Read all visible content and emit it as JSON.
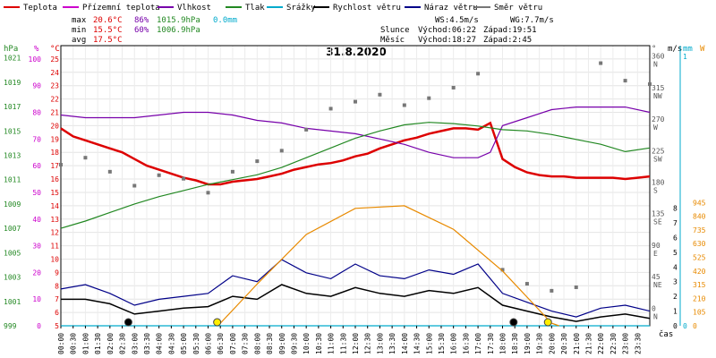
{
  "legend": [
    {
      "label": "Teplota",
      "color": "#dd0000"
    },
    {
      "label": "Přízemní teplota",
      "color": "#cc00cc"
    },
    {
      "label": "Vlhkost",
      "color": "#7700aa"
    },
    {
      "label": "Tlak",
      "color": "#228822"
    },
    {
      "label": "Srážky",
      "color": "#00aacc"
    },
    {
      "label": "Rychlost větru",
      "color": "#000000"
    },
    {
      "label": "Náraz větru",
      "color": "#000088"
    },
    {
      "label": "Směr větru",
      "color": "#777777"
    }
  ],
  "stats": {
    "max_label": "max",
    "max_temp": "20.6°C",
    "max_hum": "86%",
    "max_press": "1015.9hPa",
    "max_rain": "0.0mm",
    "min_label": "min",
    "min_temp": "15.5°C",
    "min_hum": "60%",
    "min_press": "1006.9hPa",
    "avg_label": "avg",
    "avg_temp": "17.5°C"
  },
  "wind_info": {
    "ws": "WS:4.5m/s",
    "wg": "WG:7.7m/s"
  },
  "sun_info": {
    "label": "Slunce",
    "rise": "Východ:06:22",
    "set": "Západ:19:51"
  },
  "moon_info": {
    "label": "Měsíc",
    "rise": "Východ:18:27",
    "set": "Západ:2:45"
  },
  "title": "31.8.2020",
  "axis_units": {
    "hpa": "hPa",
    "pct": "%",
    "degc": "°C",
    "deg": "°",
    "ms": "m/s",
    "mm": "mm",
    "wm2": "W",
    "time": "čas"
  },
  "colors": {
    "temp": "#dd0000",
    "humidity": "#7700aa",
    "pressure": "#228822",
    "rain": "#00aacc",
    "wind": "#000000",
    "gust": "#000088",
    "dir": "#777777",
    "sun": "#e88a00",
    "hum_axis": "#cc00cc",
    "temp_axis": "#dd0000",
    "hpa_axis": "#228822"
  },
  "chart_data": {
    "type": "line",
    "title": "31.8.2020",
    "x_ticks": [
      "00:00",
      "00:30",
      "01:00",
      "01:30",
      "02:00",
      "02:30",
      "03:00",
      "03:30",
      "04:00",
      "04:30",
      "05:00",
      "05:30",
      "06:00",
      "06:30",
      "07:00",
      "07:30",
      "08:00",
      "08:30",
      "09:00",
      "09:30",
      "10:00",
      "10:30",
      "11:00",
      "11:30",
      "12:00",
      "12:30",
      "13:00",
      "13:30",
      "14:00",
      "14:30",
      "15:00",
      "15:30",
      "16:00",
      "16:30",
      "17:00",
      "17:30",
      "18:00",
      "18:30",
      "19:00",
      "19:30",
      "20:00",
      "20:30",
      "21:00",
      "21:30",
      "22:00",
      "22:30",
      "23:00",
      "23:30"
    ],
    "axes": {
      "pressure_hpa": {
        "ticks": [
          999,
          1001,
          1003,
          1005,
          1007,
          1009,
          1011,
          1013,
          1015,
          1017,
          1019,
          1021
        ]
      },
      "humidity_pct": {
        "ticks": [
          0,
          10,
          20,
          30,
          40,
          50,
          60,
          70,
          80,
          90,
          100
        ]
      },
      "temperature_c": {
        "ticks": [
          5,
          6,
          7,
          8,
          9,
          10,
          11,
          12,
          13,
          14,
          15,
          16,
          17,
          18,
          19,
          20,
          21,
          22,
          23,
          24,
          25
        ]
      },
      "wind_dir_deg": {
        "ticks": [
          [
            "0",
            "N"
          ],
          [
            "45",
            "NE"
          ],
          [
            "90",
            "E"
          ],
          [
            "135",
            "SE"
          ],
          [
            "180",
            "S"
          ],
          [
            "225",
            "SW"
          ],
          [
            "270",
            "W"
          ],
          [
            "315",
            "NW"
          ],
          [
            "360",
            "N"
          ]
        ]
      },
      "wind_ms": {
        "ticks": [
          0,
          1,
          2,
          3,
          4,
          5,
          6,
          7,
          8
        ]
      },
      "rain_mm": {
        "ticks": [
          0,
          1
        ]
      },
      "solar_wm2": {
        "ticks": [
          0,
          105,
          210,
          315,
          420,
          525,
          630,
          735,
          840,
          945
        ]
      }
    },
    "series": [
      {
        "name": "Teplota",
        "axis": "temperature_c",
        "points": [
          [
            0,
            19.8
          ],
          [
            0.5,
            19.2
          ],
          [
            1,
            18.9
          ],
          [
            1.5,
            18.6
          ],
          [
            2,
            18.3
          ],
          [
            2.5,
            18.0
          ],
          [
            3,
            17.5
          ],
          [
            3.5,
            17.0
          ],
          [
            4,
            16.7
          ],
          [
            4.5,
            16.4
          ],
          [
            5,
            16.1
          ],
          [
            5.5,
            15.9
          ],
          [
            6,
            15.6
          ],
          [
            6.5,
            15.6
          ],
          [
            7,
            15.8
          ],
          [
            7.5,
            15.9
          ],
          [
            8,
            16.0
          ],
          [
            8.5,
            16.2
          ],
          [
            9,
            16.4
          ],
          [
            9.5,
            16.7
          ],
          [
            10,
            16.9
          ],
          [
            10.5,
            17.1
          ],
          [
            11,
            17.2
          ],
          [
            11.5,
            17.4
          ],
          [
            12,
            17.7
          ],
          [
            12.5,
            17.9
          ],
          [
            13,
            18.3
          ],
          [
            13.5,
            18.6
          ],
          [
            14,
            18.9
          ],
          [
            14.5,
            19.1
          ],
          [
            15,
            19.4
          ],
          [
            15.5,
            19.6
          ],
          [
            16,
            19.8
          ],
          [
            16.5,
            19.8
          ],
          [
            17,
            19.7
          ],
          [
            17.5,
            20.2
          ],
          [
            18,
            17.5
          ],
          [
            18.5,
            16.9
          ],
          [
            19,
            16.5
          ],
          [
            19.5,
            16.3
          ],
          [
            20,
            16.2
          ],
          [
            20.5,
            16.2
          ],
          [
            21,
            16.1
          ],
          [
            21.5,
            16.1
          ],
          [
            22,
            16.1
          ],
          [
            22.5,
            16.1
          ],
          [
            23,
            16.0
          ],
          [
            23.5,
            16.1
          ],
          [
            24,
            16.2
          ]
        ]
      },
      {
        "name": "Vlhkost",
        "axis": "humidity_pct",
        "points": [
          [
            0,
            79
          ],
          [
            1,
            78
          ],
          [
            2,
            78
          ],
          [
            3,
            78
          ],
          [
            4,
            79
          ],
          [
            5,
            80
          ],
          [
            6,
            80
          ],
          [
            7,
            79
          ],
          [
            8,
            77
          ],
          [
            9,
            76
          ],
          [
            10,
            74
          ],
          [
            11,
            73
          ],
          [
            12,
            72
          ],
          [
            13,
            70
          ],
          [
            14,
            68
          ],
          [
            15,
            65
          ],
          [
            16,
            63
          ],
          [
            17,
            63
          ],
          [
            17.5,
            65
          ],
          [
            18,
            75
          ],
          [
            19,
            78
          ],
          [
            20,
            81
          ],
          [
            21,
            82
          ],
          [
            22,
            82
          ],
          [
            23,
            82
          ],
          [
            24,
            80
          ]
        ]
      },
      {
        "name": "Tlak",
        "axis": "pressure_hpa",
        "points": [
          [
            0,
            1007.0
          ],
          [
            1,
            1007.6
          ],
          [
            2,
            1008.3
          ],
          [
            3,
            1009.0
          ],
          [
            4,
            1009.6
          ],
          [
            5,
            1010.1
          ],
          [
            6,
            1010.6
          ],
          [
            7,
            1011.0
          ],
          [
            8,
            1011.4
          ],
          [
            9,
            1012.0
          ],
          [
            10,
            1012.8
          ],
          [
            11,
            1013.6
          ],
          [
            12,
            1014.4
          ],
          [
            13,
            1015.0
          ],
          [
            14,
            1015.5
          ],
          [
            15,
            1015.7
          ],
          [
            16,
            1015.6
          ],
          [
            17,
            1015.4
          ],
          [
            18,
            1015.1
          ],
          [
            19,
            1015.0
          ],
          [
            20,
            1014.7
          ],
          [
            21,
            1014.3
          ],
          [
            22,
            1013.9
          ],
          [
            23,
            1013.3
          ],
          [
            24,
            1013.6
          ]
        ]
      },
      {
        "name": "Rychlost větru",
        "axis": "wind_ms",
        "points": [
          [
            0,
            1.8
          ],
          [
            1,
            1.8
          ],
          [
            2,
            1.5
          ],
          [
            3,
            0.8
          ],
          [
            4,
            1.0
          ],
          [
            5,
            1.2
          ],
          [
            6,
            1.3
          ],
          [
            7,
            2.0
          ],
          [
            8,
            1.8
          ],
          [
            9,
            2.8
          ],
          [
            10,
            2.2
          ],
          [
            11,
            2.0
          ],
          [
            12,
            2.6
          ],
          [
            13,
            2.2
          ],
          [
            14,
            2.0
          ],
          [
            15,
            2.4
          ],
          [
            16,
            2.2
          ],
          [
            17,
            2.6
          ],
          [
            18,
            1.4
          ],
          [
            19,
            1.0
          ],
          [
            20,
            0.6
          ],
          [
            21,
            0.3
          ],
          [
            22,
            0.6
          ],
          [
            23,
            0.8
          ],
          [
            24,
            0.5
          ]
        ]
      },
      {
        "name": "Náraz větru",
        "axis": "wind_ms",
        "points": [
          [
            0,
            2.5
          ],
          [
            1,
            2.8
          ],
          [
            2,
            2.2
          ],
          [
            3,
            1.4
          ],
          [
            4,
            1.8
          ],
          [
            5,
            2.0
          ],
          [
            6,
            2.2
          ],
          [
            7,
            3.4
          ],
          [
            8,
            3.0
          ],
          [
            9,
            4.5
          ],
          [
            10,
            3.6
          ],
          [
            11,
            3.2
          ],
          [
            12,
            4.2
          ],
          [
            13,
            3.4
          ],
          [
            14,
            3.2
          ],
          [
            15,
            3.8
          ],
          [
            16,
            3.5
          ],
          [
            17,
            4.2
          ],
          [
            18,
            2.2
          ],
          [
            19,
            1.6
          ],
          [
            20,
            1.0
          ],
          [
            21,
            0.6
          ],
          [
            22,
            1.2
          ],
          [
            23,
            1.4
          ],
          [
            24,
            1.0
          ]
        ]
      },
      {
        "name": "Směr větru",
        "axis": "wind_dir_deg",
        "type": "scatter",
        "points": [
          [
            0,
            210
          ],
          [
            1,
            220
          ],
          [
            2,
            200
          ],
          [
            3,
            180
          ],
          [
            4,
            195
          ],
          [
            5,
            190
          ],
          [
            6,
            170
          ],
          [
            7,
            200
          ],
          [
            8,
            215
          ],
          [
            9,
            230
          ],
          [
            10,
            260
          ],
          [
            11,
            290
          ],
          [
            12,
            300
          ],
          [
            13,
            310
          ],
          [
            14,
            295
          ],
          [
            15,
            305
          ],
          [
            16,
            320
          ],
          [
            17,
            340
          ],
          [
            18,
            60
          ],
          [
            19,
            40
          ],
          [
            20,
            30
          ],
          [
            21,
            35
          ],
          [
            22,
            355
          ],
          [
            23,
            330
          ],
          [
            24,
            325
          ]
        ]
      },
      {
        "name": "Srážky",
        "axis": "rain_mm",
        "points": [
          [
            0,
            0
          ],
          [
            24,
            0
          ]
        ]
      },
      {
        "axis": "solar_wm2",
        "points": [
          [
            6.4,
            0
          ],
          [
            8,
            320
          ],
          [
            10,
            700
          ],
          [
            12,
            900
          ],
          [
            14,
            920
          ],
          [
            16,
            740
          ],
          [
            18,
            420
          ],
          [
            20,
            20
          ],
          [
            20.3,
            0
          ]
        ]
      }
    ]
  }
}
